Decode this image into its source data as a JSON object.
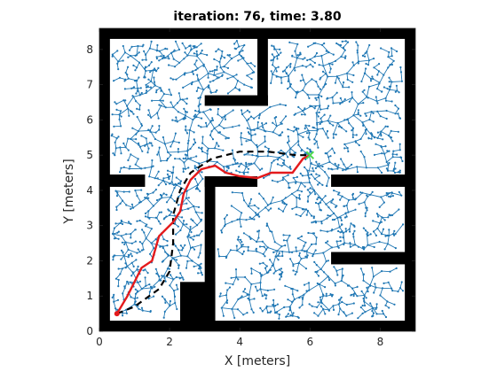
{
  "chart_data": {
    "type": "scatter",
    "title": "iteration: 76, time: 3.80",
    "xlabel": "X [meters]",
    "ylabel": "Y [meters]",
    "xlim": [
      0,
      9
    ],
    "ylim": [
      0,
      8.6
    ],
    "xticks": [
      "0",
      "2",
      "4",
      "6",
      "8"
    ],
    "yticks": [
      "0",
      "1",
      "2",
      "3",
      "4",
      "5",
      "6",
      "7",
      "8"
    ],
    "xtick_values": [
      0,
      2,
      4,
      6,
      8
    ],
    "ytick_values": [
      0,
      1,
      2,
      3,
      4,
      5,
      6,
      7,
      8
    ],
    "colors": {
      "obstacle": "#000000",
      "tree": "#1f77b4",
      "path_executed": "#e41a1c",
      "path_planned": "#000000",
      "goal": "#4dd94d"
    },
    "obstacles": [
      {
        "x0": 0.0,
        "y0": 0.0,
        "x1": 0.3,
        "y1": 8.6
      },
      {
        "x0": 0.0,
        "y0": 8.3,
        "x1": 9.0,
        "y1": 8.6
      },
      {
        "x0": 8.7,
        "y0": 0.0,
        "x1": 9.0,
        "y1": 8.6
      },
      {
        "x0": 0.0,
        "y0": 0.0,
        "x1": 9.0,
        "y1": 0.3
      },
      {
        "x0": 4.5,
        "y0": 6.4,
        "x1": 4.8,
        "y1": 8.6
      },
      {
        "x0": 3.0,
        "y0": 6.4,
        "x1": 4.8,
        "y1": 6.7
      },
      {
        "x0": 0.0,
        "y0": 4.1,
        "x1": 1.3,
        "y1": 4.45
      },
      {
        "x0": 3.0,
        "y0": 4.1,
        "x1": 4.5,
        "y1": 4.4
      },
      {
        "x0": 3.0,
        "y0": 0.0,
        "x1": 3.3,
        "y1": 4.4
      },
      {
        "x0": 2.3,
        "y0": 0.0,
        "x1": 3.3,
        "y1": 1.4
      },
      {
        "x0": 6.6,
        "y0": 4.1,
        "x1": 9.0,
        "y1": 4.45
      },
      {
        "x0": 6.6,
        "y0": 1.9,
        "x1": 9.0,
        "y1": 2.25
      }
    ],
    "start": {
      "x": 0.5,
      "y": 0.5
    },
    "goal": {
      "x": 6.0,
      "y": 5.0
    },
    "path_executed": [
      {
        "x": 0.5,
        "y": 0.5
      },
      {
        "x": 0.8,
        "y": 1.0
      },
      {
        "x": 1.2,
        "y": 1.8
      },
      {
        "x": 1.5,
        "y": 2.0
      },
      {
        "x": 1.7,
        "y": 2.7
      },
      {
        "x": 2.1,
        "y": 3.1
      },
      {
        "x": 2.3,
        "y": 3.4
      },
      {
        "x": 2.4,
        "y": 3.9
      },
      {
        "x": 2.6,
        "y": 4.3
      },
      {
        "x": 2.9,
        "y": 4.6
      },
      {
        "x": 3.3,
        "y": 4.7
      },
      {
        "x": 3.6,
        "y": 4.5
      },
      {
        "x": 4.0,
        "y": 4.4
      },
      {
        "x": 4.5,
        "y": 4.35
      },
      {
        "x": 4.9,
        "y": 4.5
      },
      {
        "x": 5.5,
        "y": 4.5
      },
      {
        "x": 5.8,
        "y": 4.9
      },
      {
        "x": 6.0,
        "y": 5.0
      }
    ],
    "path_planned": [
      {
        "x": 0.5,
        "y": 0.5
      },
      {
        "x": 1.0,
        "y": 0.7
      },
      {
        "x": 1.7,
        "y": 1.2
      },
      {
        "x": 2.0,
        "y": 1.7
      },
      {
        "x": 2.1,
        "y": 2.5
      },
      {
        "x": 2.1,
        "y": 3.3
      },
      {
        "x": 2.3,
        "y": 4.0
      },
      {
        "x": 2.6,
        "y": 4.5
      },
      {
        "x": 3.2,
        "y": 4.9
      },
      {
        "x": 4.0,
        "y": 5.1
      },
      {
        "x": 4.8,
        "y": 5.1
      },
      {
        "x": 5.6,
        "y": 5.0
      },
      {
        "x": 6.0,
        "y": 5.0
      }
    ],
    "grid": false,
    "legend": "none"
  }
}
